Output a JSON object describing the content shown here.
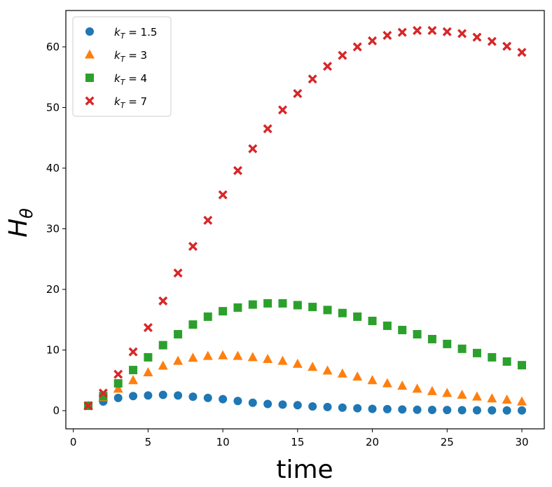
{
  "chart_data": {
    "type": "scatter",
    "title": "",
    "xlabel": "time",
    "ylabel": "H",
    "ylabel_subscript": "θ",
    "xlim": [
      -0.5,
      31.5
    ],
    "ylim": [
      -3,
      66
    ],
    "xticks": [
      0,
      5,
      10,
      15,
      20,
      25,
      30
    ],
    "yticks": [
      0,
      10,
      20,
      30,
      40,
      50,
      60
    ],
    "grid": false,
    "legend_position": "top-left",
    "x": [
      1,
      2,
      3,
      4,
      5,
      6,
      7,
      8,
      9,
      10,
      11,
      12,
      13,
      14,
      15,
      16,
      17,
      18,
      19,
      20,
      21,
      22,
      23,
      24,
      25,
      26,
      27,
      28,
      29,
      30
    ],
    "series": [
      {
        "name": "k_T = 1.5",
        "label_main": "k",
        "label_sub": "T",
        "label_value": " = 1.5",
        "marker": "circle",
        "color": "#1f77b4",
        "values": [
          0.8,
          1.5,
          2.1,
          2.4,
          2.5,
          2.6,
          2.5,
          2.3,
          2.1,
          1.9,
          1.6,
          1.3,
          1.1,
          1.0,
          0.9,
          0.7,
          0.6,
          0.5,
          0.4,
          0.3,
          0.25,
          0.2,
          0.15,
          0.12,
          0.1,
          0.08,
          0.06,
          0.05,
          0.04,
          0.03
        ]
      },
      {
        "name": "k_T = 3",
        "label_main": "k",
        "label_sub": "T",
        "label_value": " = 3",
        "marker": "triangle",
        "color": "#ff7f0e",
        "values": [
          0.8,
          2.2,
          3.6,
          5.0,
          6.3,
          7.4,
          8.2,
          8.7,
          9.0,
          9.1,
          9.0,
          8.8,
          8.5,
          8.2,
          7.7,
          7.2,
          6.6,
          6.1,
          5.6,
          5.0,
          4.5,
          4.1,
          3.6,
          3.2,
          2.9,
          2.6,
          2.3,
          2.0,
          1.8,
          1.5
        ]
      },
      {
        "name": "k_T = 4",
        "label_main": "k",
        "label_sub": "T",
        "label_value": " = 4",
        "marker": "square",
        "color": "#2ca02c",
        "values": [
          0.8,
          2.4,
          4.5,
          6.7,
          8.8,
          10.8,
          12.6,
          14.2,
          15.5,
          16.4,
          17.0,
          17.5,
          17.7,
          17.7,
          17.4,
          17.1,
          16.6,
          16.1,
          15.5,
          14.8,
          14.0,
          13.3,
          12.6,
          11.8,
          11.0,
          10.2,
          9.5,
          8.8,
          8.1,
          7.5
        ]
      },
      {
        "name": "k_T = 7",
        "label_main": "k",
        "label_sub": "T",
        "label_value": " = 7",
        "marker": "x",
        "color": "#d62728",
        "values": [
          0.8,
          2.9,
          6.0,
          9.7,
          13.7,
          18.1,
          22.7,
          27.1,
          31.4,
          35.6,
          39.6,
          43.2,
          46.5,
          49.6,
          52.3,
          54.7,
          56.8,
          58.6,
          60.0,
          61.0,
          61.9,
          62.4,
          62.7,
          62.7,
          62.5,
          62.2,
          61.6,
          60.9,
          60.1,
          59.1
        ]
      }
    ]
  }
}
